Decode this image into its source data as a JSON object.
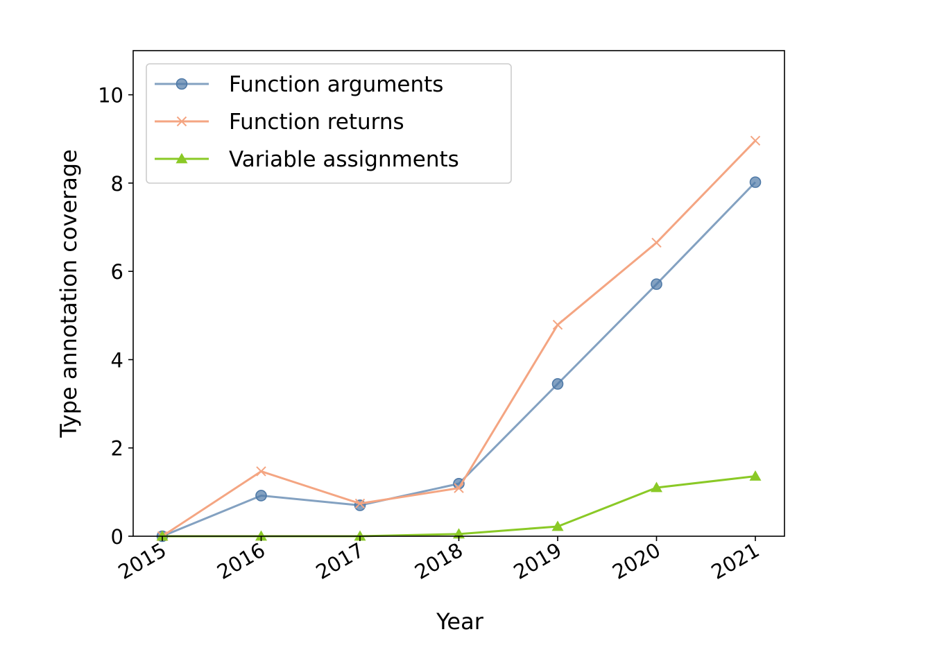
{
  "chart_data": {
    "type": "line",
    "title": "",
    "xlabel": "Year",
    "ylabel": "Type annotation coverage",
    "x": [
      "2015",
      "2016",
      "2017",
      "2018",
      "2019",
      "2020",
      "2021"
    ],
    "ylim": [
      0,
      11
    ],
    "yticks": [
      0,
      2,
      4,
      6,
      8,
      10
    ],
    "grid": false,
    "legend_position": "top-left",
    "series": [
      {
        "name": "Function arguments",
        "marker": "circle",
        "color": "#4e79a7",
        "values": [
          0.0,
          0.92,
          0.7,
          1.19,
          3.45,
          5.71,
          8.02
        ]
      },
      {
        "name": "Function returns",
        "marker": "x",
        "color": "#f4a582",
        "values": [
          0.0,
          1.47,
          0.74,
          1.09,
          4.79,
          6.65,
          8.96
        ]
      },
      {
        "name": "Variable assignments",
        "marker": "triangle",
        "color": "#8ac926",
        "values": [
          0.0,
          0.0,
          0.0,
          0.05,
          0.22,
          1.1,
          1.36
        ]
      }
    ]
  }
}
